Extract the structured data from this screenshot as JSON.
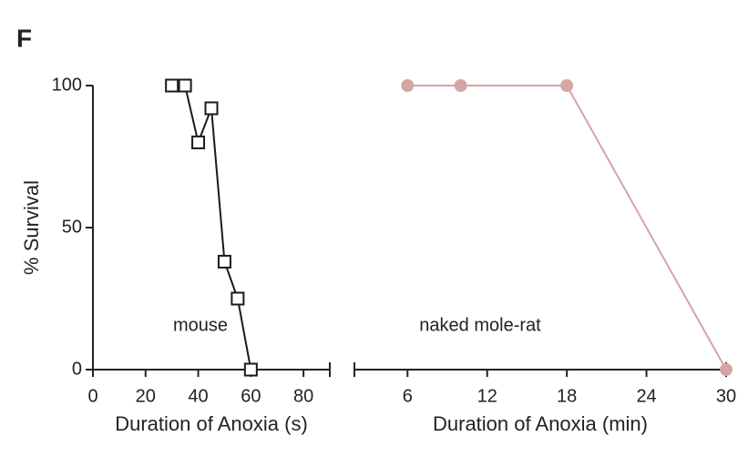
{
  "panel_label": "F",
  "chart_data": [
    {
      "type": "line",
      "xlabel": "Duration of Anoxia (s)",
      "ylabel": "% Survival",
      "annotation": "mouse",
      "x": [
        30,
        35,
        40,
        45,
        50,
        55,
        60
      ],
      "values": [
        100,
        100,
        80,
        92,
        38,
        25,
        0
      ],
      "color": "#1a1a1a",
      "marker": "square",
      "xlim": [
        0,
        90
      ],
      "xticks": [
        0,
        20,
        40,
        60,
        80
      ],
      "ylim": [
        0,
        100
      ],
      "yticks": [
        0,
        50,
        100
      ]
    },
    {
      "type": "line",
      "xlabel": "Duration of Anoxia (min)",
      "annotation": "naked mole-rat",
      "x": [
        6,
        10,
        18,
        30
      ],
      "values": [
        100,
        100,
        100,
        0
      ],
      "color": "#d4a5a5",
      "marker": "circle",
      "xlim": [
        2,
        30
      ],
      "xticks": [
        6,
        12,
        18,
        24,
        30
      ],
      "ylim": [
        0,
        100
      ]
    }
  ]
}
